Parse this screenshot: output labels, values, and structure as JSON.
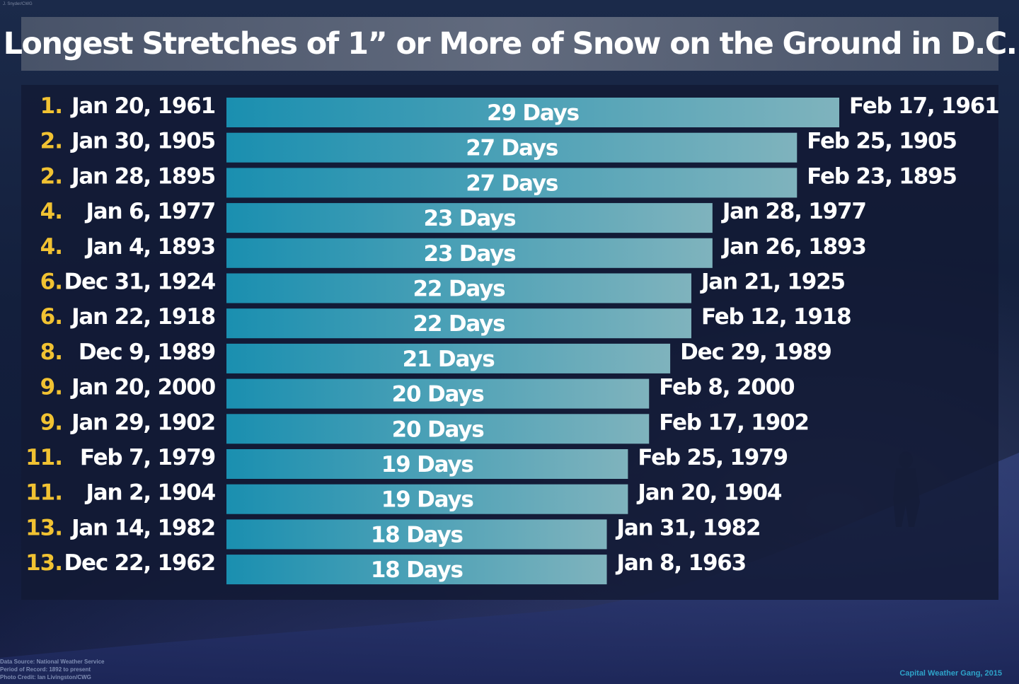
{
  "photo_credit_tiny": "J. Snyder/CWG",
  "title": "Longest Stretches of 1” or More of Snow on the Ground in D.C.",
  "chart_data": {
    "type": "bar",
    "orientation": "horizontal",
    "title": "Longest Stretches of 1” or More of Snow on the Ground in D.C.",
    "xlabel": "",
    "ylabel": "",
    "value_unit": "Days",
    "bar_gradient": [
      "#1a8fb0",
      "#7fb3bd"
    ],
    "rank_color": "#f1c232",
    "rows": [
      {
        "rank": "1.",
        "start": "Jan 20, 1961",
        "days": 29,
        "label": "29 Days",
        "end": "Feb 17, 1961"
      },
      {
        "rank": "2.",
        "start": "Jan 30, 1905",
        "days": 27,
        "label": "27 Days",
        "end": "Feb 25, 1905"
      },
      {
        "rank": "2.",
        "start": "Jan 28, 1895",
        "days": 27,
        "label": "27 Days",
        "end": "Feb 23, 1895"
      },
      {
        "rank": "4.",
        "start": "Jan 6, 1977",
        "days": 23,
        "label": "23 Days",
        "end": "Jan 28, 1977"
      },
      {
        "rank": "4.",
        "start": "Jan 4, 1893",
        "days": 23,
        "label": "23 Days",
        "end": "Jan 26, 1893"
      },
      {
        "rank": "6.",
        "start": "Dec 31, 1924",
        "days": 22,
        "label": "22 Days",
        "end": "Jan 21, 1925"
      },
      {
        "rank": "6.",
        "start": "Jan 22, 1918",
        "days": 22,
        "label": "22 Days",
        "end": "Feb 12, 1918"
      },
      {
        "rank": "8.",
        "start": "Dec 9, 1989",
        "days": 21,
        "label": "21 Days",
        "end": "Dec 29, 1989"
      },
      {
        "rank": "9.",
        "start": "Jan 20, 2000",
        "days": 20,
        "label": "20 Days",
        "end": "Feb 8, 2000"
      },
      {
        "rank": "9.",
        "start": "Jan 29, 1902",
        "days": 20,
        "label": "20 Days",
        "end": "Feb 17, 1902"
      },
      {
        "rank": "11.",
        "start": "Feb 7, 1979",
        "days": 19,
        "label": "19 Days",
        "end": "Feb 25, 1979"
      },
      {
        "rank": "11.",
        "start": "Jan 2, 1904",
        "days": 19,
        "label": "19 Days",
        "end": "Jan 20, 1904"
      },
      {
        "rank": "13.",
        "start": "Jan 14, 1982",
        "days": 18,
        "label": "18 Days",
        "end": "Jan 31, 1982"
      },
      {
        "rank": "13.",
        "start": "Dec 22, 1962",
        "days": 18,
        "label": "18 Days",
        "end": "Jan 8, 1963"
      }
    ]
  },
  "footer": {
    "source": "Data Source: National Weather Service",
    "period": "Period of Record: 1892 to present",
    "photo": "Photo Credit: Ian Livingston/CWG",
    "brand": "Capital Weather Gang, 2015"
  }
}
